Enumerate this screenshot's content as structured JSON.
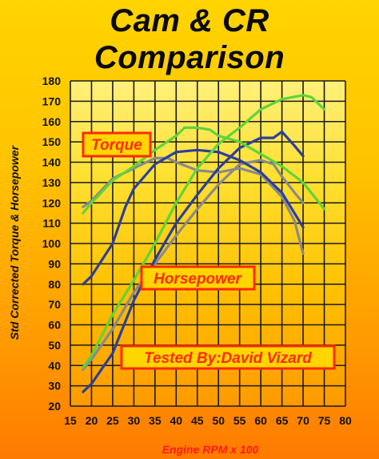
{
  "chart_data": {
    "type": "line",
    "title_line1": "Cam & CR",
    "title_line2": "Comparison",
    "xlabel": "Engine RPM x 100",
    "ylabel": "Std Corrected Torque & Horsepower",
    "xlim": [
      15,
      80
    ],
    "ylim": [
      20,
      180
    ],
    "xticks": [
      15,
      20,
      25,
      30,
      35,
      40,
      45,
      50,
      55,
      60,
      65,
      70,
      75,
      80
    ],
    "yticks": [
      20,
      30,
      40,
      50,
      60,
      70,
      80,
      90,
      100,
      110,
      120,
      130,
      140,
      150,
      160,
      170,
      180
    ],
    "grid": true,
    "annotations": [
      "Torque",
      "Horsepower",
      "Tested By:David Vizard"
    ],
    "colors": {
      "green": "#5fd43a",
      "blue": "#2c3f9e",
      "gray": "#8a8a8a",
      "grid": "#1a1a1a",
      "annotation": "#ff2a00"
    },
    "series": [
      {
        "color": "green",
        "curve": "torque",
        "points": [
          [
            18,
            115
          ],
          [
            20,
            120
          ],
          [
            25,
            131
          ],
          [
            30,
            138
          ],
          [
            35,
            146
          ],
          [
            40,
            153
          ],
          [
            42,
            157
          ],
          [
            45,
            157
          ],
          [
            48,
            156
          ],
          [
            50,
            153
          ],
          [
            55,
            150
          ],
          [
            60,
            144
          ],
          [
            65,
            138
          ],
          [
            70,
            130
          ],
          [
            75,
            117
          ]
        ]
      },
      {
        "color": "blue",
        "curve": "torque",
        "points": [
          [
            18,
            80
          ],
          [
            20,
            84
          ],
          [
            25,
            100
          ],
          [
            28,
            118
          ],
          [
            30,
            127
          ],
          [
            35,
            139
          ],
          [
            40,
            145
          ],
          [
            45,
            146
          ],
          [
            50,
            145
          ],
          [
            55,
            141
          ],
          [
            60,
            135
          ],
          [
            65,
            125
          ],
          [
            70,
            108
          ]
        ]
      },
      {
        "color": "gray",
        "curve": "torque",
        "points": [
          [
            18,
            118
          ],
          [
            20,
            121
          ],
          [
            25,
            132
          ],
          [
            30,
            137
          ],
          [
            35,
            142
          ],
          [
            38,
            142
          ],
          [
            40,
            140
          ],
          [
            45,
            136
          ],
          [
            50,
            135
          ],
          [
            55,
            137
          ],
          [
            60,
            134
          ],
          [
            65,
            123
          ],
          [
            68,
            111
          ],
          [
            70,
            95
          ]
        ]
      },
      {
        "color": "green",
        "curve": "horsepower",
        "points": [
          [
            18,
            39
          ],
          [
            20,
            45
          ],
          [
            25,
            65
          ],
          [
            30,
            82
          ],
          [
            35,
            100
          ],
          [
            40,
            120
          ],
          [
            45,
            137
          ],
          [
            50,
            149
          ],
          [
            55,
            157
          ],
          [
            60,
            166
          ],
          [
            65,
            171
          ],
          [
            70,
            173
          ],
          [
            72,
            172
          ],
          [
            75,
            166
          ]
        ]
      },
      {
        "color": "blue",
        "curve": "horsepower",
        "points": [
          [
            18,
            27
          ],
          [
            20,
            31
          ],
          [
            25,
            46
          ],
          [
            30,
            72
          ],
          [
            35,
            92
          ],
          [
            40,
            110
          ],
          [
            45,
            124
          ],
          [
            50,
            137
          ],
          [
            55,
            147
          ],
          [
            60,
            152
          ],
          [
            63,
            152
          ],
          [
            65,
            155
          ],
          [
            68,
            148
          ],
          [
            70,
            143
          ]
        ]
      },
      {
        "color": "gray",
        "curve": "horsepower",
        "points": [
          [
            18,
            38
          ],
          [
            20,
            43
          ],
          [
            25,
            58
          ],
          [
            30,
            76
          ],
          [
            35,
            90
          ],
          [
            40,
            104
          ],
          [
            45,
            117
          ],
          [
            50,
            129
          ],
          [
            55,
            139
          ],
          [
            60,
            141
          ],
          [
            63,
            139
          ],
          [
            65,
            133
          ],
          [
            68,
            125
          ],
          [
            70,
            120
          ]
        ]
      }
    ]
  }
}
